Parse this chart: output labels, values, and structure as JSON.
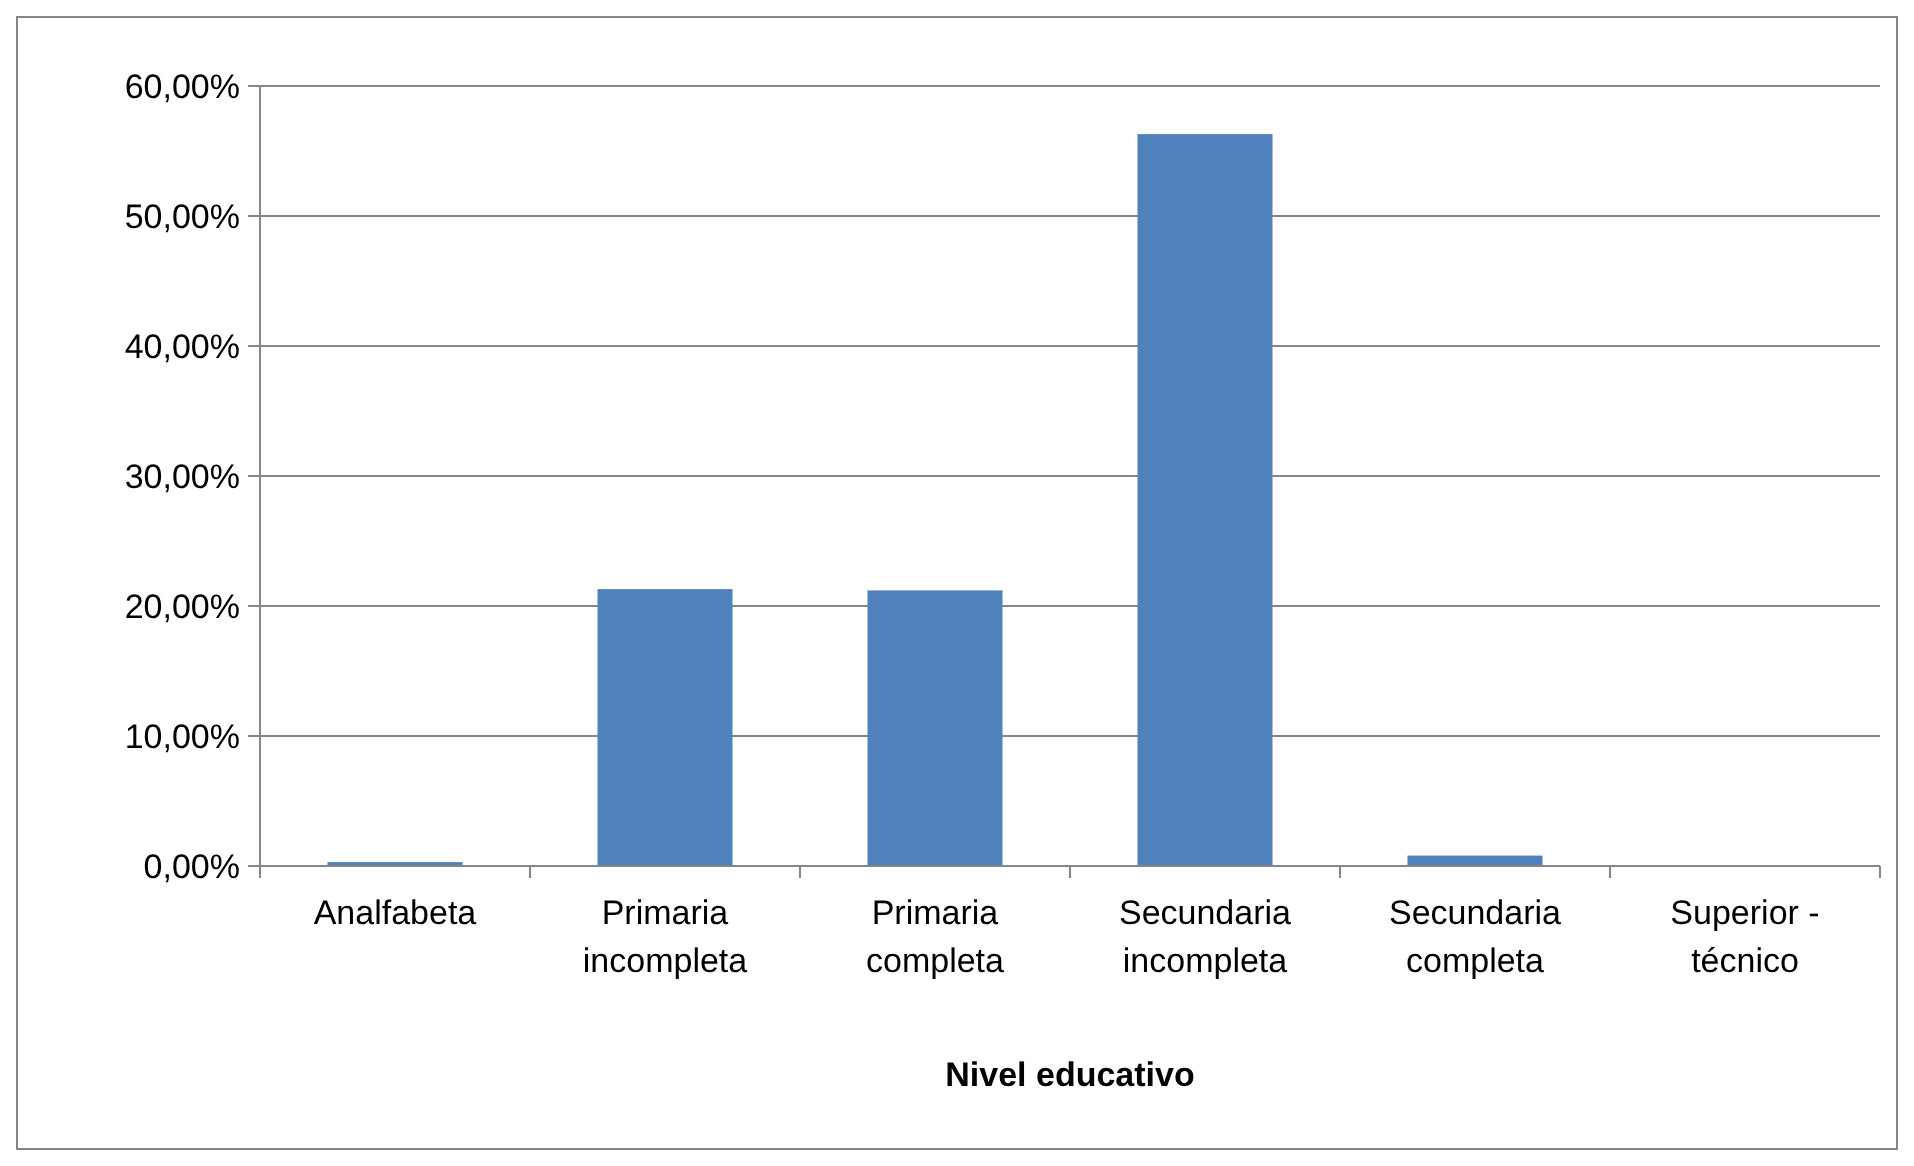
{
  "chart_data": {
    "type": "bar",
    "xlabel": "Nivel educativo",
    "categories": [
      "Analfabeta",
      "Primaria incompleta",
      "Primaria completa",
      "Secundaria incompleta",
      "Secundaria completa",
      "Superior - técnico"
    ],
    "values": [
      0.3,
      21.3,
      21.2,
      56.3,
      0.8,
      0
    ],
    "color": "#4f81bd",
    "ylim": [
      0,
      60
    ],
    "yticks": [
      {
        "value": 0,
        "label": "0,00%"
      },
      {
        "value": 10,
        "label": "10,00%"
      },
      {
        "value": 20,
        "label": "20,00%"
      },
      {
        "value": 30,
        "label": "30,00%"
      },
      {
        "value": 40,
        "label": "40,00%"
      },
      {
        "value": 50,
        "label": "50,00%"
      },
      {
        "value": 60,
        "label": "60,00%"
      }
    ],
    "grid": "y"
  }
}
